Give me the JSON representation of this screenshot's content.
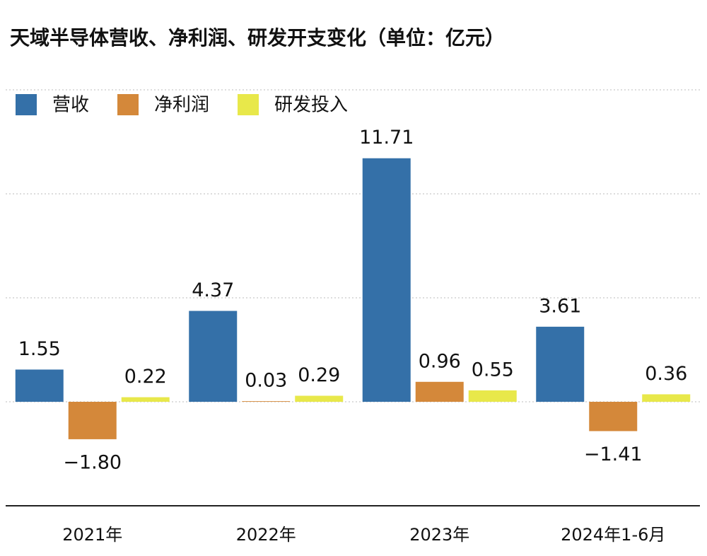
{
  "chart_data": {
    "type": "bar",
    "title": "天域半导体营收、净利润、研发开支变化（单位：亿元）",
    "categories": [
      "2021年",
      "2022年",
      "2023年",
      "2024年1-6月"
    ],
    "series": [
      {
        "name": "营收",
        "color": "#3470a8",
        "values": [
          1.55,
          4.37,
          11.71,
          3.61
        ],
        "value_labels": [
          "1.55",
          "4.37",
          "11.71",
          "3.61"
        ]
      },
      {
        "name": "净利润",
        "color": "#d4883a",
        "values": [
          -1.8,
          0.03,
          0.96,
          -1.41
        ],
        "value_labels": [
          "−1.80",
          "0.03",
          "0.96",
          "−1.41"
        ]
      },
      {
        "name": "研发投入",
        "color": "#e8e84a",
        "values": [
          0.22,
          0.29,
          0.55,
          0.36
        ],
        "value_labels": [
          "0.22",
          "0.29",
          "0.55",
          "0.36"
        ]
      }
    ],
    "ylim": [
      -5,
      15
    ],
    "yticks": [
      -5,
      0,
      5,
      10,
      15
    ],
    "grid": true
  }
}
